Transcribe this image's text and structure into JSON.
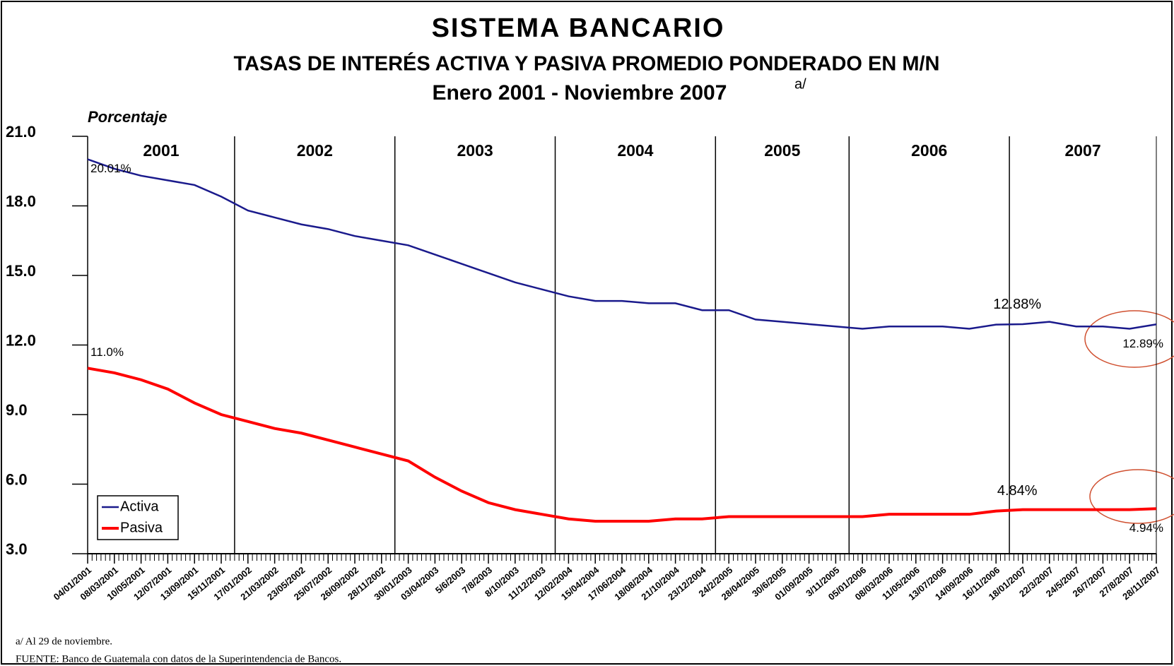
{
  "chart_data": {
    "type": "line",
    "title": "SISTEMA BANCARIO",
    "subtitle": "TASAS DE INTERÉS ACTIVA Y PASIVA PROMEDIO PONDERADO EN M/N",
    "period": "Enero 2001 - Noviembre 2007",
    "period_note": "a/",
    "y_label": "Porcentaje",
    "footnotes": [
      "a/  Al 29 de noviembre.",
      "FUENTE:  Banco de Guatemala con datos de la Superintendencia de Bancos."
    ],
    "year_labels": [
      "2001",
      "2002",
      "2003",
      "2004",
      "2005",
      "2006",
      "2007"
    ],
    "categories": [
      "04/01/2001",
      "08/03/2001",
      "10/05/2001",
      "12/07/2001",
      "13/09/2001",
      "15/11/2001",
      "17/01/2002",
      "21/03/2002",
      "23/05/2002",
      "25/07/2002",
      "26/09/2002",
      "28/11/2002",
      "30/01/2003",
      "03/04/2003",
      "5/6/2003",
      "7/8/2003",
      "8/10/2003",
      "11/12/2003",
      "12/02/2004",
      "15/04/2004",
      "17/06/2004",
      "18/08/2004",
      "21/10/2004",
      "23/12/2004",
      "24/2/2005",
      "28/04/2005",
      "30/6/2005",
      "01/09/2005",
      "3/11/2005",
      "05/01/2006",
      "08/03/2006",
      "11/05/2006",
      "13/07/2006",
      "14/09/2006",
      "16/11/2006",
      "18/01/2007",
      "22/3/2007",
      "24/5/2007",
      "26/7/2007",
      "27/8/2007",
      "28/11/2007"
    ],
    "series": [
      {
        "name": "Activa",
        "color": "#1a1a8c",
        "values": [
          20.01,
          19.6,
          19.3,
          19.1,
          18.9,
          18.4,
          17.8,
          17.5,
          17.2,
          17.0,
          16.7,
          16.5,
          16.3,
          15.9,
          15.5,
          15.1,
          14.7,
          14.4,
          14.1,
          13.9,
          13.9,
          13.8,
          13.8,
          13.5,
          13.5,
          13.1,
          13.0,
          12.9,
          12.8,
          12.7,
          12.8,
          12.8,
          12.8,
          12.7,
          12.88,
          12.9,
          13.0,
          12.8,
          12.8,
          12.7,
          12.89
        ],
        "value_labels": [
          "20.01%",
          null,
          null,
          null,
          null,
          null,
          null,
          null,
          null,
          null,
          null,
          null,
          null,
          null,
          null,
          null,
          null,
          null,
          null,
          null,
          null,
          null,
          null,
          null,
          null,
          null,
          null,
          null,
          null,
          null,
          null,
          null,
          null,
          null,
          "12.88%",
          null,
          null,
          null,
          null,
          null,
          "12.89%"
        ]
      },
      {
        "name": "Pasiva",
        "color": "#ff0000",
        "values": [
          11.0,
          10.8,
          10.5,
          10.1,
          9.5,
          9.0,
          8.7,
          8.4,
          8.2,
          7.9,
          7.6,
          7.3,
          7.0,
          6.3,
          5.7,
          5.2,
          4.9,
          4.7,
          4.5,
          4.4,
          4.4,
          4.4,
          4.5,
          4.5,
          4.6,
          4.6,
          4.6,
          4.6,
          4.6,
          4.6,
          4.7,
          4.7,
          4.7,
          4.7,
          4.84,
          4.9,
          4.9,
          4.9,
          4.9,
          4.9,
          4.94
        ],
        "value_labels": [
          "11.0%",
          null,
          null,
          null,
          null,
          null,
          null,
          null,
          null,
          null,
          null,
          null,
          null,
          null,
          null,
          null,
          null,
          null,
          null,
          null,
          null,
          null,
          null,
          null,
          null,
          null,
          null,
          null,
          null,
          null,
          null,
          null,
          null,
          null,
          "4.84%",
          null,
          null,
          null,
          null,
          null,
          "4.94%"
        ]
      }
    ],
    "ylim": [
      3,
      21
    ],
    "yticks": [
      {
        "value": 3,
        "label": "3.0"
      },
      {
        "value": 6,
        "label": "6.0"
      },
      {
        "value": 9,
        "label": "9.0"
      },
      {
        "value": 12,
        "label": "12.0"
      },
      {
        "value": 15,
        "label": "15.0"
      },
      {
        "value": 18,
        "label": "18.0"
      },
      {
        "value": 21,
        "label": "21.0"
      }
    ],
    "legend": "bottom-left"
  }
}
